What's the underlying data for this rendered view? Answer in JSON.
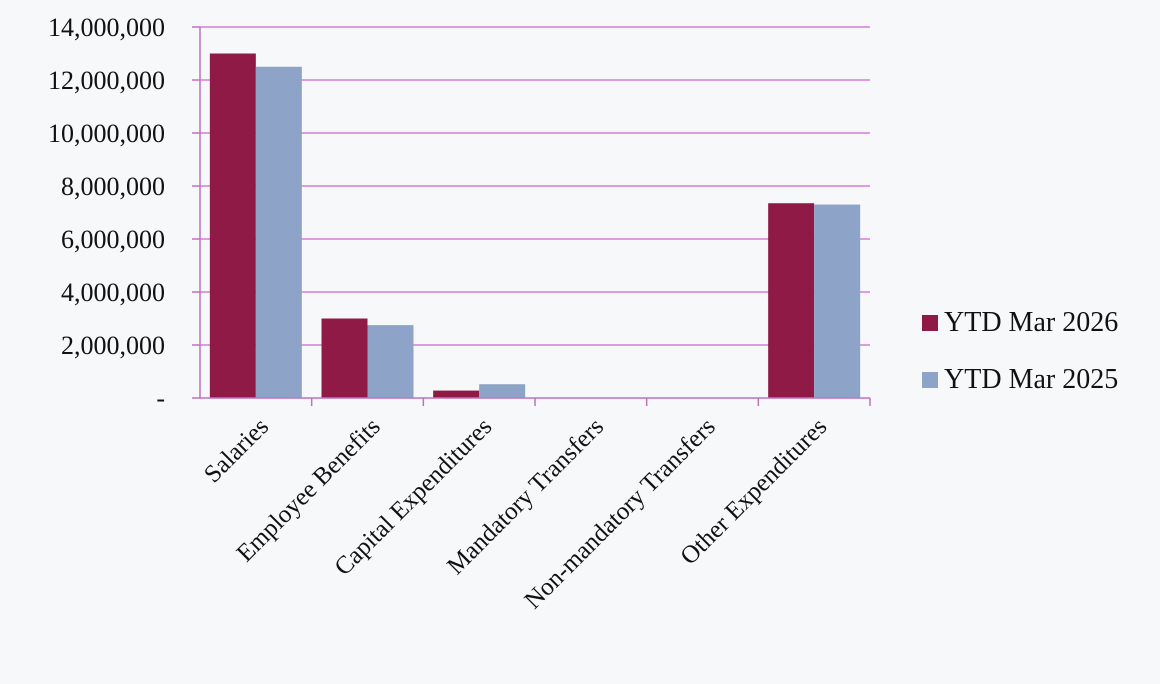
{
  "chart_data": {
    "type": "bar",
    "categories": [
      "Salaries",
      "Employee Benefits",
      "Capital Expenditures",
      "Mandatory Transfers",
      "Non-mandatory Transfers",
      "Other Expenditures"
    ],
    "series": [
      {
        "name": "YTD Mar 2026",
        "values": [
          13000000,
          3000000,
          280000,
          0,
          0,
          7350000
        ],
        "color": "#8e1a45"
      },
      {
        "name": "YTD Mar 2025",
        "values": [
          12500000,
          2750000,
          520000,
          0,
          0,
          7300000
        ],
        "color": "#8ea3c8"
      }
    ],
    "yticks": [
      {
        "value": 14000000,
        "label": "14,000,000"
      },
      {
        "value": 12000000,
        "label": "12,000,000"
      },
      {
        "value": 10000000,
        "label": "10,000,000"
      },
      {
        "value": 8000000,
        "label": "8,000,000"
      },
      {
        "value": 6000000,
        "label": "6,000,000"
      },
      {
        "value": 4000000,
        "label": "4,000,000"
      },
      {
        "value": 2000000,
        "label": "2,000,000"
      },
      {
        "value": 0,
        "label": "-"
      }
    ],
    "ylim": [
      0,
      14000000
    ],
    "grid": true,
    "gridline_color": "#d87ad6",
    "legend_position": "right"
  }
}
